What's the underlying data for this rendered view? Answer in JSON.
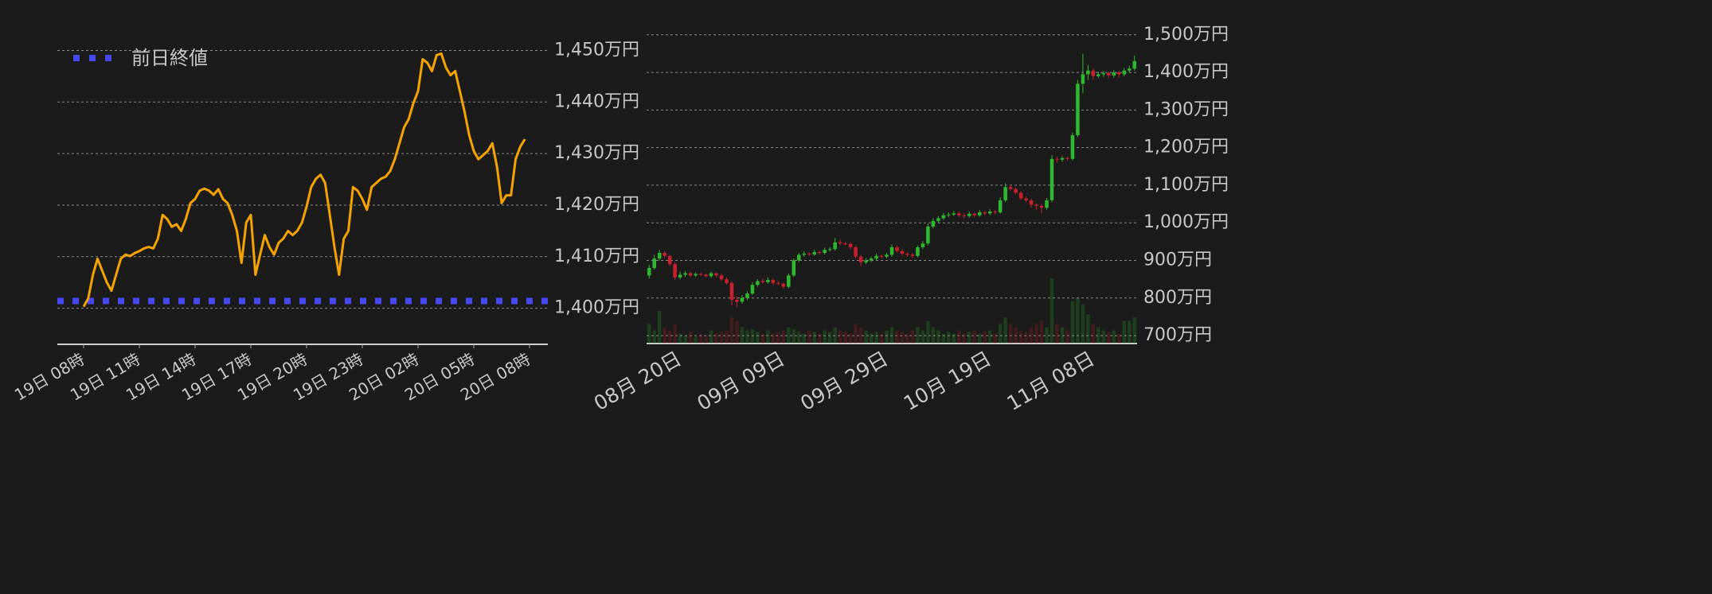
{
  "chart_data": [
    {
      "type": "line",
      "color": "#f5a300",
      "categories": [
        "19日 08時",
        null,
        null,
        null,
        null,
        null,
        null,
        null,
        null,
        null,
        null,
        null,
        "19日 11時",
        null,
        null,
        null,
        null,
        null,
        null,
        null,
        null,
        null,
        null,
        null,
        "19日 14時",
        null,
        null,
        null,
        null,
        null,
        null,
        null,
        null,
        null,
        null,
        null,
        "19日 17時",
        null,
        null,
        null,
        null,
        null,
        null,
        null,
        null,
        null,
        null,
        null,
        "19日 20時",
        null,
        null,
        null,
        null,
        null,
        null,
        null,
        null,
        null,
        null,
        null,
        "19日 23時",
        null,
        null,
        null,
        null,
        null,
        null,
        null,
        null,
        null,
        null,
        null,
        "20日 02時",
        null,
        null,
        null,
        null,
        null,
        null,
        null,
        null,
        null,
        null,
        null,
        "20日 05時",
        null,
        null,
        null,
        null,
        null,
        null,
        null,
        null,
        null,
        null,
        null,
        "20日 08時"
      ],
      "values": [
        1400.3,
        1401.9,
        1406.5,
        1409.6,
        1407.3,
        1405,
        1403.4,
        1406.5,
        1409.6,
        1410.4,
        1410.1,
        1410.7,
        1411.1,
        1411.6,
        1411.9,
        1411.6,
        1413.5,
        1418.1,
        1417.3,
        1415.8,
        1416.3,
        1415,
        1417.3,
        1420.4,
        1421.2,
        1422.8,
        1423.2,
        1422.8,
        1422,
        1423.1,
        1421.2,
        1420.4,
        1418.1,
        1415,
        1408.8,
        1416.6,
        1418.1,
        1406.5,
        1410.4,
        1414.2,
        1411.9,
        1410.4,
        1412.7,
        1413.5,
        1415,
        1414.2,
        1415,
        1416.6,
        1419.7,
        1423.5,
        1425.1,
        1425.9,
        1424.3,
        1418.1,
        1411.9,
        1406.5,
        1413.5,
        1415,
        1423.5,
        1422.8,
        1421.2,
        1419.1,
        1423.5,
        1424.3,
        1425.1,
        1425.5,
        1426.6,
        1428.9,
        1432,
        1435.1,
        1436.7,
        1439.8,
        1442.1,
        1448.3,
        1447.6,
        1446,
        1449.1,
        1449.4,
        1446.7,
        1445.2,
        1446,
        1442.1,
        1438.2,
        1433.6,
        1430.5,
        1428.9,
        1429.7,
        1430.5,
        1432,
        1427.4,
        1420.4,
        1421.9,
        1421.9,
        1428.9,
        1431.3,
        1432.8,
        null
      ],
      "reference_line": {
        "name": "前日終値",
        "value": 1401.4,
        "color": "#4848f0"
      },
      "ylim": [
        1393,
        1451
      ],
      "yticks": [
        {
          "value": 1400,
          "label": "1,400万円"
        },
        {
          "value": 1410,
          "label": "1,410万円"
        },
        {
          "value": 1420,
          "label": "1,420万円"
        },
        {
          "value": 1430,
          "label": "1,430万円"
        },
        {
          "value": 1440,
          "label": "1,440万円"
        },
        {
          "value": 1450,
          "label": "1,450万円"
        }
      ],
      "grid": true
    },
    {
      "type": "candlestick",
      "up_color": "#2fb82f",
      "down_color": "#c8202f",
      "categories": [
        null,
        null,
        null,
        null,
        null,
        null,
        "08月 20日",
        null,
        null,
        null,
        null,
        null,
        null,
        null,
        null,
        null,
        null,
        null,
        null,
        null,
        null,
        null,
        null,
        null,
        null,
        null,
        "09月 09日",
        null,
        null,
        null,
        null,
        null,
        null,
        null,
        null,
        null,
        null,
        null,
        null,
        null,
        null,
        null,
        null,
        null,
        null,
        null,
        "09月 29日",
        null,
        null,
        null,
        null,
        null,
        null,
        null,
        null,
        null,
        null,
        null,
        null,
        null,
        null,
        null,
        null,
        null,
        null,
        null,
        "10月 19日",
        null,
        null,
        null,
        null,
        null,
        null,
        null,
        null,
        null,
        null,
        null,
        null,
        null,
        null,
        null,
        null,
        null,
        null,
        null,
        "11月 08日",
        null,
        null,
        null,
        null,
        null,
        null,
        null,
        null
      ],
      "open": [
        860,
        880,
        905,
        920,
        912,
        890,
        855,
        862,
        866,
        860,
        864,
        862,
        858,
        866,
        860,
        850,
        840,
        795,
        790,
        800,
        812,
        835,
        845,
        842,
        848,
        840,
        838,
        830,
        860,
        900,
        915,
        918,
        916,
        922,
        920,
        928,
        930,
        948,
        945,
        944,
        935,
        910,
        895,
        900,
        905,
        912,
        910,
        915,
        935,
        925,
        918,
        915,
        912,
        935,
        945,
        990,
        1005,
        1012,
        1020,
        1022,
        1025,
        1020,
        1018,
        1024,
        1020,
        1028,
        1025,
        1030,
        1028,
        1060,
        1095,
        1090,
        1080,
        1065,
        1060,
        1048,
        1045,
        1040,
        1060,
        1170,
        1168,
        1172,
        1170,
        1233,
        1370,
        1395,
        1405,
        1390,
        1395,
        1398,
        1392,
        1400,
        1395,
        1405,
        1410
      ],
      "high": [
        888,
        915,
        928,
        925,
        915,
        895,
        870,
        872,
        870,
        868,
        868,
        866,
        870,
        868,
        864,
        855,
        845,
        805,
        808,
        818,
        842,
        850,
        852,
        855,
        852,
        846,
        842,
        865,
        905,
        920,
        925,
        922,
        928,
        926,
        934,
        936,
        960,
        955,
        950,
        948,
        940,
        915,
        906,
        910,
        918,
        916,
        920,
        942,
        940,
        930,
        922,
        920,
        940,
        952,
        998,
        1012,
        1018,
        1026,
        1028,
        1032,
        1030,
        1026,
        1030,
        1028,
        1034,
        1032,
        1036,
        1034,
        1068,
        1105,
        1100,
        1094,
        1085,
        1070,
        1064,
        1052,
        1050,
        1066,
        1180,
        1176,
        1178,
        1176,
        1240,
        1380,
        1450,
        1420,
        1410,
        1402,
        1404,
        1402,
        1406,
        1404,
        1412,
        1418,
        1445
      ],
      "low": [
        852,
        875,
        900,
        906,
        885,
        848,
        850,
        856,
        855,
        856,
        858,
        854,
        854,
        855,
        845,
        835,
        780,
        775,
        785,
        795,
        808,
        830,
        838,
        838,
        835,
        834,
        825,
        826,
        856,
        896,
        910,
        912,
        912,
        915,
        916,
        924,
        926,
        940,
        940,
        930,
        905,
        885,
        890,
        895,
        900,
        905,
        906,
        910,
        920,
        912,
        910,
        906,
        908,
        930,
        940,
        985,
        1000,
        1008,
        1015,
        1018,
        1015,
        1012,
        1014,
        1015,
        1016,
        1020,
        1020,
        1022,
        1024,
        1055,
        1085,
        1075,
        1060,
        1055,
        1040,
        1035,
        1025,
        1035,
        1055,
        1160,
        1162,
        1165,
        1166,
        1228,
        1345,
        1380,
        1380,
        1385,
        1388,
        1385,
        1386,
        1388,
        1390,
        1400,
        1405
      ],
      "close": [
        880,
        905,
        920,
        912,
        890,
        855,
        862,
        866,
        860,
        864,
        862,
        858,
        866,
        860,
        850,
        840,
        795,
        790,
        800,
        812,
        835,
        845,
        842,
        848,
        840,
        838,
        830,
        860,
        900,
        915,
        918,
        916,
        922,
        920,
        928,
        930,
        948,
        945,
        944,
        935,
        910,
        895,
        900,
        905,
        912,
        910,
        915,
        935,
        925,
        918,
        915,
        912,
        935,
        945,
        990,
        1005,
        1012,
        1020,
        1022,
        1025,
        1020,
        1018,
        1024,
        1020,
        1028,
        1025,
        1030,
        1028,
        1060,
        1095,
        1090,
        1080,
        1065,
        1060,
        1048,
        1045,
        1040,
        1060,
        1170,
        1168,
        1172,
        1170,
        1233,
        1370,
        1395,
        1405,
        1390,
        1395,
        1398,
        1392,
        1400,
        1395,
        1405,
        1410,
        1430
      ],
      "volume": [
        30,
        20,
        50,
        25,
        20,
        30,
        15,
        12,
        18,
        10,
        15,
        12,
        20,
        15,
        18,
        20,
        40,
        35,
        25,
        20,
        22,
        18,
        15,
        20,
        15,
        18,
        20,
        25,
        22,
        18,
        15,
        20,
        18,
        15,
        20,
        18,
        25,
        20,
        18,
        15,
        30,
        25,
        20,
        15,
        18,
        15,
        20,
        25,
        20,
        18,
        15,
        20,
        25,
        20,
        35,
        25,
        20,
        15,
        18,
        15,
        20,
        15,
        18,
        20,
        15,
        18,
        20,
        15,
        30,
        40,
        30,
        25,
        20,
        18,
        25,
        30,
        35,
        25,
        100,
        30,
        25,
        20,
        65,
        70,
        60,
        45,
        30,
        25,
        20,
        18,
        20,
        15,
        35,
        35,
        40
      ],
      "ylim": [
        679,
        1508
      ],
      "yticks": [
        {
          "value": 700,
          "label": "700万円"
        },
        {
          "value": 800,
          "label": "800万円"
        },
        {
          "value": 900,
          "label": "900万円"
        },
        {
          "value": 1000,
          "label": "1,000万円"
        },
        {
          "value": 1100,
          "label": "1,100万円"
        },
        {
          "value": 1200,
          "label": "1,200万円"
        },
        {
          "value": 1300,
          "label": "1,300万円"
        },
        {
          "value": 1400,
          "label": "1,400万円"
        },
        {
          "value": 1500,
          "label": "1,500万円"
        }
      ],
      "grid": true
    }
  ]
}
